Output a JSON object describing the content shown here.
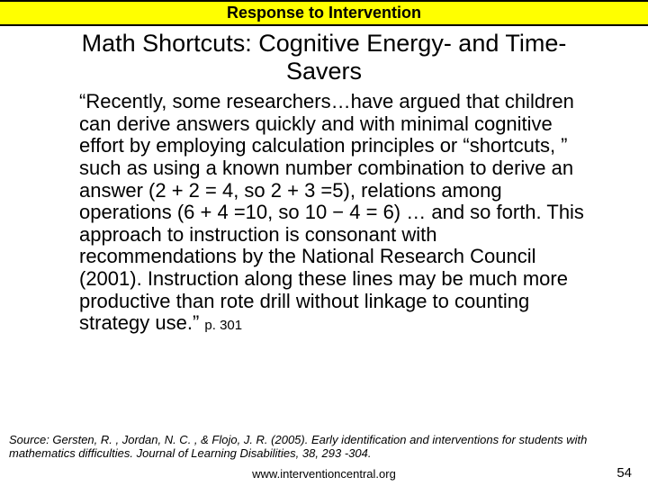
{
  "header": {
    "title": "Response to Intervention"
  },
  "slide": {
    "title": "Math Shortcuts: Cognitive Energy- and Time-Savers",
    "body": "“Recently, some researchers…have argued that children can derive answers quickly and with minimal cognitive effort by employing calculation principles or “shortcuts, ” such as using a known number combination to derive an answer (2 + 2 = 4, so 2 + 3 =5), relations among operations (6 + 4 =10, so 10 − 4 = 6) … and so forth. This approach to instruction is consonant with recommendations by the National Research Council (2001). Instruction along these lines may be much more productive than rote drill without linkage to counting strategy use.”",
    "page_ref": "p. 301"
  },
  "source": {
    "text": "Source: Gersten, R. , Jordan, N. C. , & Flojo, J. R. (2005). Early identification and interventions for students with mathematics difficulties. Journal of Learning Disabilities, 38, 293 -304."
  },
  "footer": {
    "url": "www.interventioncentral.org",
    "page_number": "54"
  },
  "colors": {
    "header_bg": "#ffff00",
    "header_border": "#000000",
    "text": "#000000",
    "background": "#ffffff"
  }
}
